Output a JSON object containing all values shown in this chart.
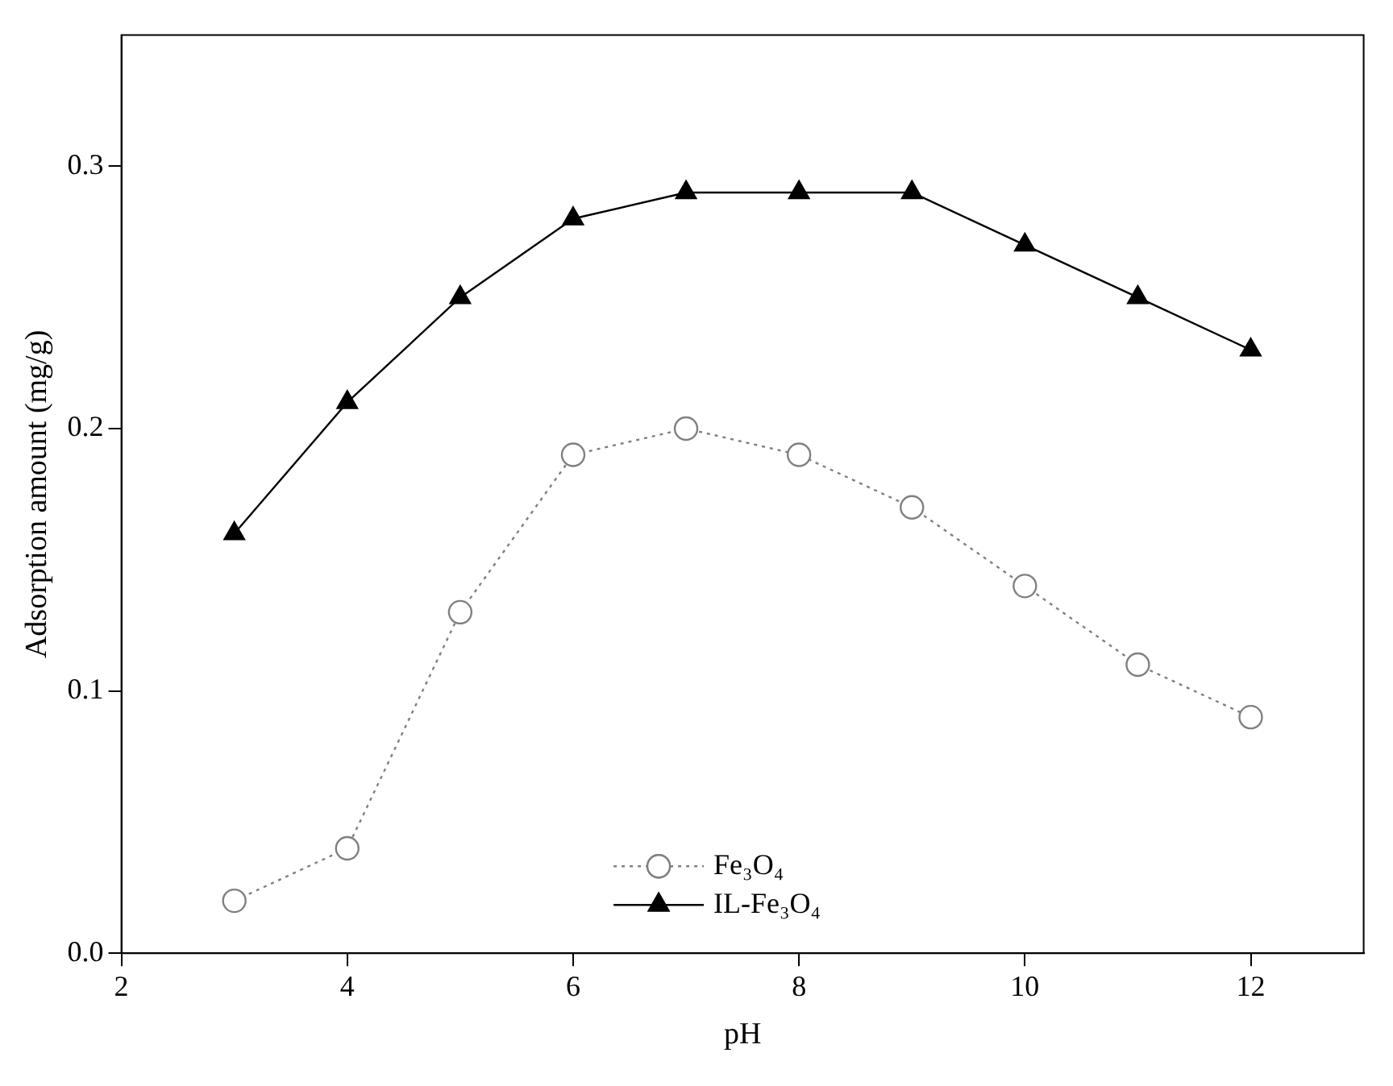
{
  "chart_data": {
    "type": "line",
    "xlabel": "pH",
    "ylabel": "Adsorption amount (mg/g)",
    "x": [
      3,
      4,
      5,
      6,
      7,
      8,
      9,
      10,
      11,
      12
    ],
    "series": [
      {
        "name": "Fe₃O₄",
        "color": "#808080",
        "marker": "circle",
        "line_style": "dotted",
        "values": [
          0.02,
          0.04,
          0.13,
          0.19,
          0.2,
          0.19,
          0.17,
          0.14,
          0.11,
          0.09
        ]
      },
      {
        "name": "IL-Fe₃O₄",
        "color": "#000000",
        "marker": "triangle",
        "line_style": "solid",
        "values": [
          0.16,
          0.21,
          0.25,
          0.28,
          0.29,
          0.29,
          0.29,
          0.27,
          0.25,
          0.23
        ]
      }
    ],
    "xlim": [
      2,
      13
    ],
    "xticks": [
      2,
      4,
      6,
      8,
      10,
      12
    ],
    "ylim": [
      0,
      0.35
    ],
    "yticks": [
      {
        "value": 0,
        "label": "0.0"
      },
      {
        "value": 0.1,
        "label": "0.1"
      },
      {
        "value": 0.2,
        "label": "0.2"
      },
      {
        "value": 0.3,
        "label": "0.3"
      }
    ],
    "grid": false,
    "legend": "bottom"
  }
}
